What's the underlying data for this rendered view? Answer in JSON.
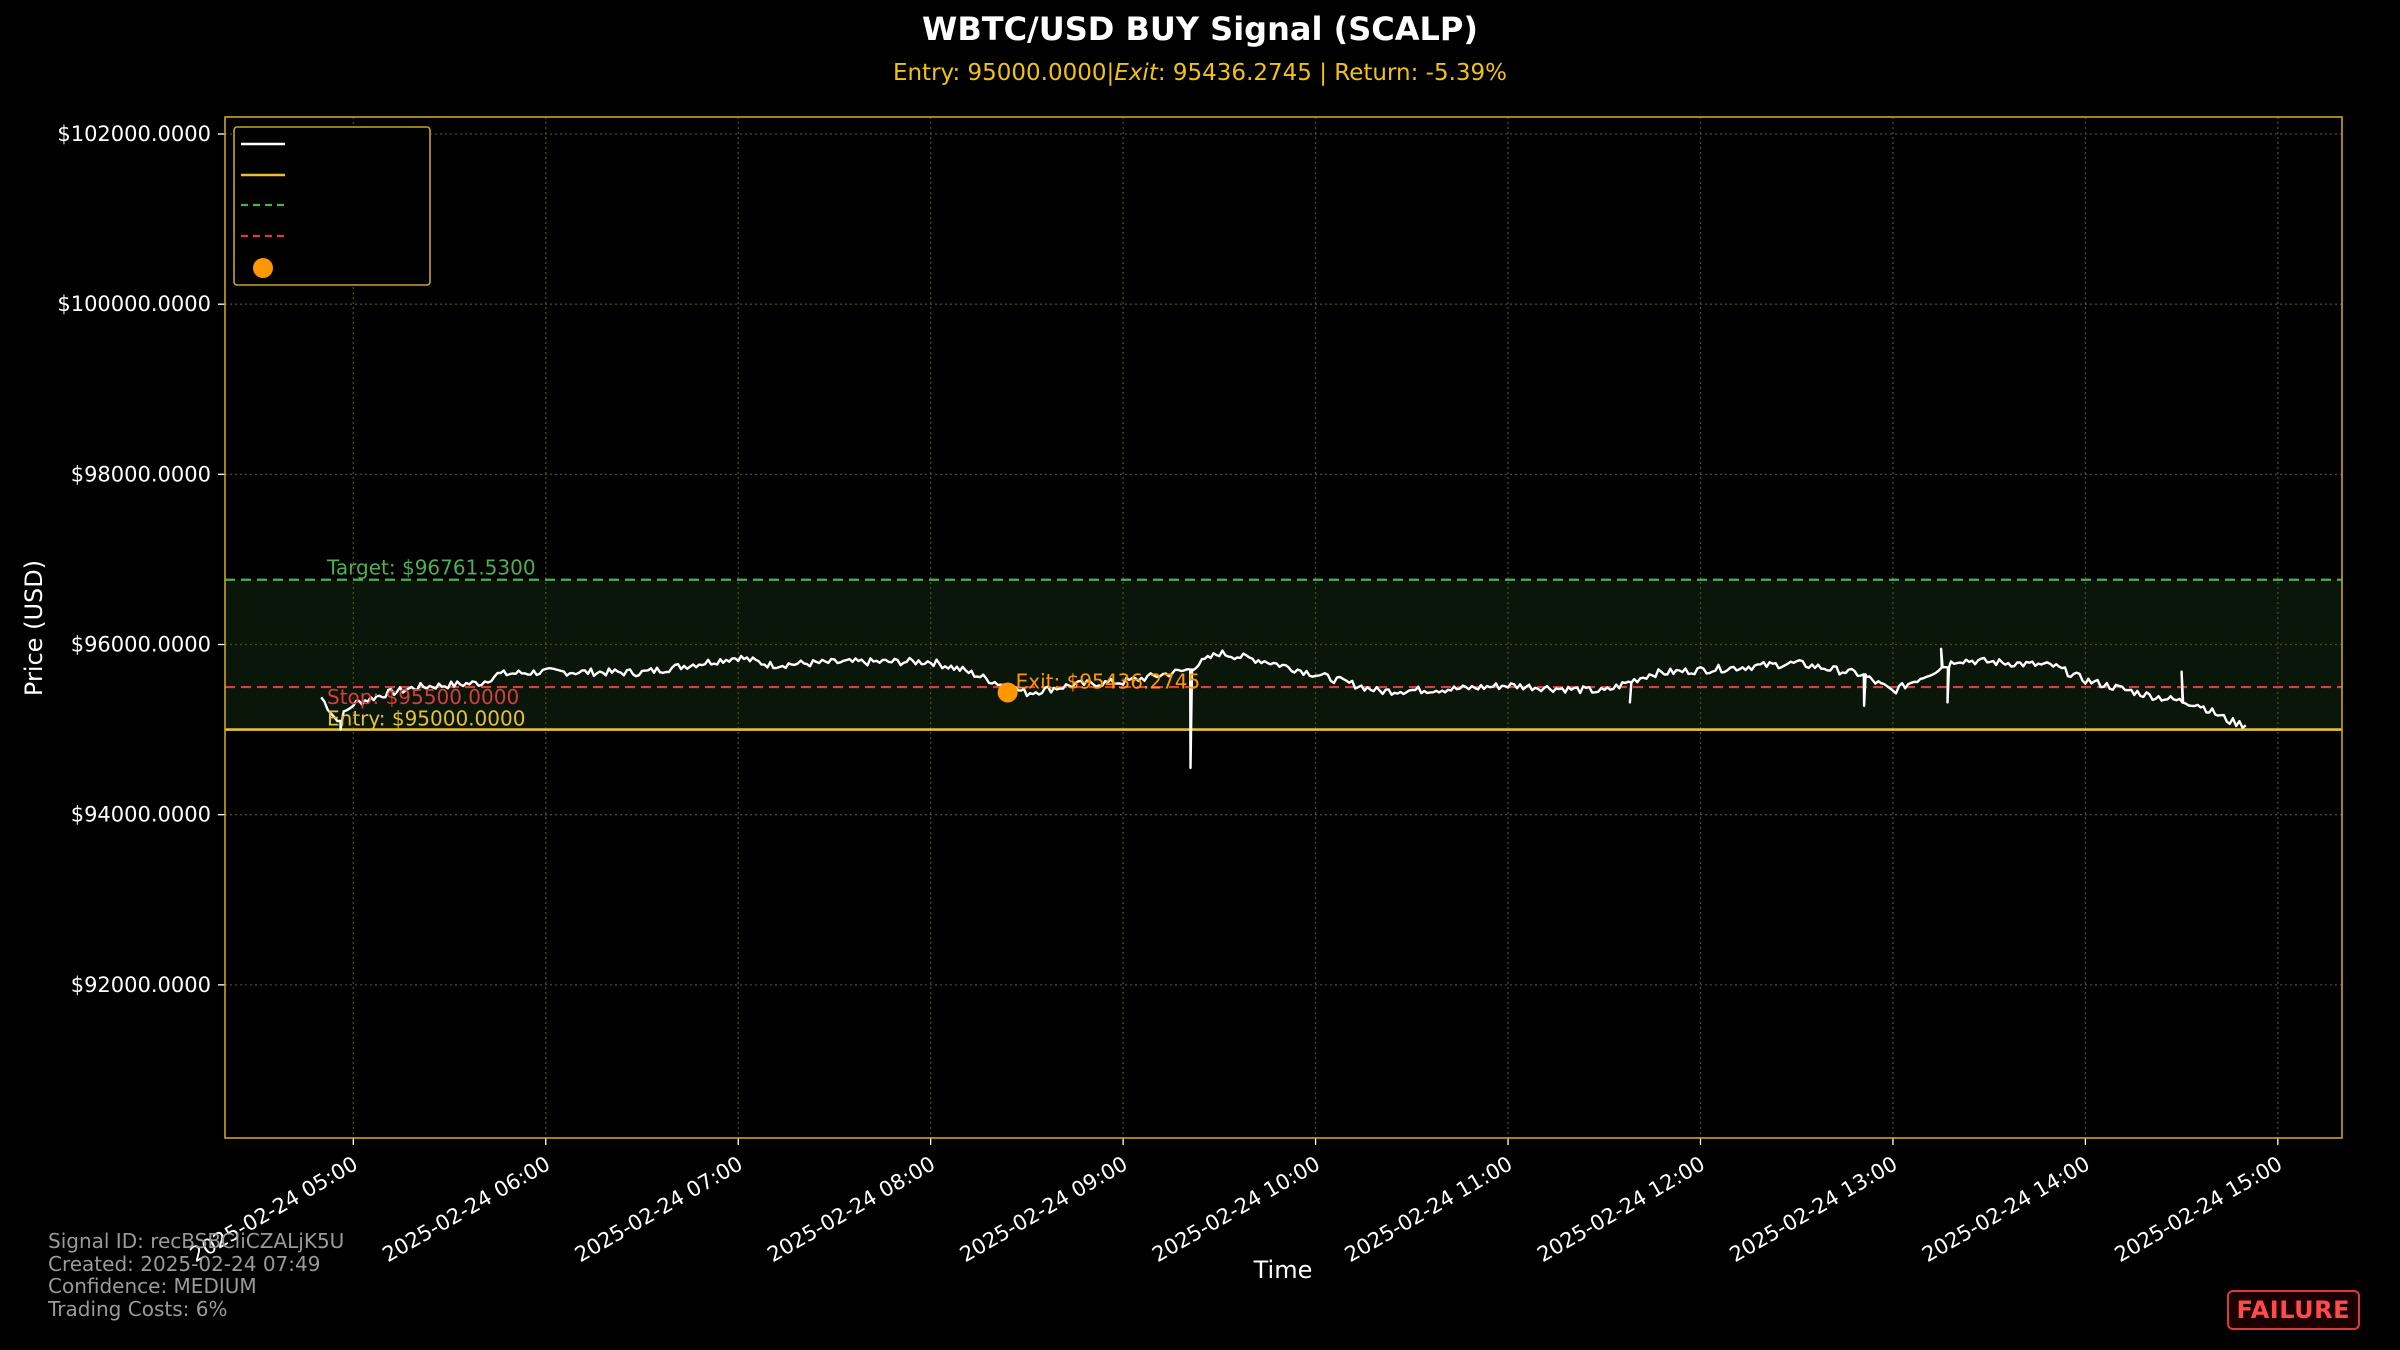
{
  "chart_data": {
    "type": "line",
    "title": "WBTC/USD BUY Signal (SCALP)",
    "subtitle": "Entry: 95000.0000|$Exit: $95436.2745 | Return: -5.39%",
    "subtitle_parts": {
      "entry": "Entry: 95000.0000|",
      "exit_label": "Exit",
      "exit_value": ": 95436.2745 | Return: -5.39%"
    },
    "xlabel": "Time",
    "ylabel": "Price (USD)",
    "x_ticks": [
      "2025-02-24 05:00",
      "2025-02-24 06:00",
      "2025-02-24 07:00",
      "2025-02-24 08:00",
      "2025-02-24 09:00",
      "2025-02-24 10:00",
      "2025-02-24 11:00",
      "2025-02-24 12:00",
      "2025-02-24 13:00",
      "2025-02-24 14:00",
      "2025-02-24 15:00"
    ],
    "y_ticks": [
      "$92000.0000",
      "$94000.0000",
      "$96000.0000",
      "$98000.0000",
      "$100000.0000",
      "$102000.0000"
    ],
    "xlim": [
      "2025-02-24 04:20",
      "2025-02-24 15:20"
    ],
    "ylim": [
      90200,
      102200
    ],
    "grid": true,
    "legend": "top-left",
    "entry": {
      "value": 95000.0,
      "label": "Entry: $95000.0000"
    },
    "target": {
      "value": 96761.53,
      "label": "Target: $96761.5300"
    },
    "stop": {
      "value": 95500.0,
      "label": "Stop: $95500.0000"
    },
    "exit": {
      "time": "2025-02-24 08:24",
      "value": 95436.2745,
      "label": "Exit: $95436.2745"
    },
    "series": [
      {
        "anchors": [
          [
            "2025-02-24 04:50",
            95380
          ],
          [
            "2025-02-24 04:55",
            95100
          ],
          [
            "2025-02-24 05:00",
            95300
          ],
          [
            "2025-02-24 05:10",
            95420
          ],
          [
            "2025-02-24 05:20",
            95500
          ],
          [
            "2025-02-24 05:40",
            95550
          ],
          [
            "2025-02-24 05:45",
            95650
          ],
          [
            "2025-02-24 06:00",
            95680
          ],
          [
            "2025-02-24 06:30",
            95670
          ],
          [
            "2025-02-24 07:00",
            95850
          ],
          [
            "2025-02-24 07:10",
            95760
          ],
          [
            "2025-02-24 07:30",
            95790
          ],
          [
            "2025-02-24 08:00",
            95800
          ],
          [
            "2025-02-24 08:10",
            95700
          ],
          [
            "2025-02-24 08:20",
            95560
          ],
          [
            "2025-02-24 08:30",
            95430
          ],
          [
            "2025-02-24 08:45",
            95530
          ],
          [
            "2025-02-24 09:00",
            95560
          ],
          [
            "2025-02-24 09:20",
            95700
          ],
          [
            "2025-02-24 09:30",
            95900
          ],
          [
            "2025-02-24 09:45",
            95800
          ],
          [
            "2025-02-24 10:00",
            95650
          ],
          [
            "2025-02-24 10:20",
            95450
          ],
          [
            "2025-02-24 10:45",
            95480
          ],
          [
            "2025-02-24 11:00",
            95520
          ],
          [
            "2025-02-24 11:30",
            95450
          ],
          [
            "2025-02-24 11:45",
            95660
          ],
          [
            "2025-02-24 12:00",
            95700
          ],
          [
            "2025-02-24 12:30",
            95780
          ],
          [
            "2025-02-24 12:50",
            95650
          ],
          [
            "2025-02-24 13:00",
            95450
          ],
          [
            "2025-02-24 13:20",
            95820
          ],
          [
            "2025-02-24 13:50",
            95750
          ],
          [
            "2025-02-24 14:00",
            95580
          ],
          [
            "2025-02-24 14:20",
            95400
          ],
          [
            "2025-02-24 14:35",
            95300
          ],
          [
            "2025-02-24 14:45",
            95100
          ],
          [
            "2025-02-24 14:50",
            95050
          ]
        ],
        "spikes": [
          [
            "2025-02-24 04:56",
            95000
          ],
          [
            "2025-02-24 09:21",
            94550
          ],
          [
            "2025-02-24 11:38",
            95320
          ],
          [
            "2025-02-24 12:51",
            95280
          ],
          [
            "2025-02-24 13:15",
            95950
          ],
          [
            "2025-02-24 13:17",
            95320
          ],
          [
            "2025-02-24 14:30",
            95680
          ]
        ]
      }
    ]
  },
  "colors": {
    "background": "#000000",
    "frame": "#c9a227",
    "grid": "#4a4a22",
    "price": "#ffffff",
    "entry": "#e4c232",
    "target": "#4caf50",
    "stop": "#d83c3c",
    "exit": "#ff9800",
    "title": "#ffffff",
    "subtitle": "#f2c20f",
    "zone": "#0a160a",
    "badge": "#ff4a4a"
  },
  "meta": {
    "signal_id": "Signal ID: recBSBCliCZALjK5U",
    "created": "Created: 2025-02-24 07:49",
    "confidence": "Confidence: MEDIUM",
    "trading_costs": "Trading Costs: 6%"
  },
  "status_badge": "FAILURE"
}
